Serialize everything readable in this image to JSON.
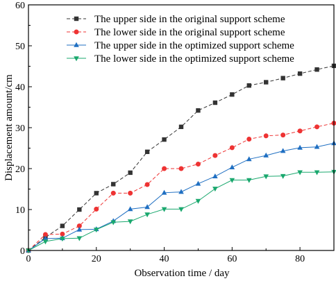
{
  "chart_data": {
    "type": "line",
    "title": "",
    "xlabel": "Observation time / day",
    "ylabel": "Displacement amount/cm",
    "xlim": [
      0,
      90
    ],
    "ylim": [
      0,
      60
    ],
    "x_ticks": [
      0,
      20,
      40,
      60,
      80
    ],
    "y_ticks": [
      0,
      10,
      20,
      30,
      40,
      50,
      60
    ],
    "grid": false,
    "legend_position": "top-left",
    "x": [
      0,
      5,
      10,
      15,
      20,
      25,
      30,
      35,
      40,
      45,
      50,
      55,
      60,
      65,
      70,
      75,
      80,
      85,
      90
    ],
    "series": [
      {
        "name": "The upper side in the original support scheme",
        "color": "#333333",
        "marker": "square",
        "dash": true,
        "values": [
          0,
          3.2,
          6,
          10,
          14,
          16.2,
          19,
          24.1,
          27.1,
          30.2,
          34.2,
          36.1,
          38.1,
          40.3,
          41.1,
          42.1,
          43.2,
          44.2,
          45.1
        ]
      },
      {
        "name": "The lower side in the original support scheme",
        "color": "#ee3333",
        "marker": "circle",
        "dash": true,
        "values": [
          0,
          3.9,
          4,
          6,
          10.1,
          14,
          14,
          16.1,
          20,
          20,
          21.1,
          23.2,
          25.1,
          27.2,
          28,
          28.2,
          29.2,
          30.2,
          31.1
        ]
      },
      {
        "name": "The upper side in the optimized support scheme",
        "color": "#1f6fc2",
        "marker": "triangle-up",
        "dash": false,
        "values": [
          0,
          2.9,
          3,
          5.1,
          5.2,
          7.2,
          10.1,
          10.6,
          14.1,
          14.3,
          16.3,
          18.1,
          20.3,
          22.3,
          23.2,
          24.3,
          25.1,
          25.3,
          26.2
        ]
      },
      {
        "name": "The lower side in the optimized support scheme",
        "color": "#1aa86e",
        "marker": "triangle-down",
        "dash": false,
        "values": [
          0,
          2.2,
          2.9,
          3,
          5.1,
          6.9,
          7.1,
          8.8,
          10.1,
          10.1,
          12.1,
          15.1,
          17.2,
          17.2,
          18.1,
          18.2,
          19.1,
          19.1,
          19.2
        ]
      }
    ]
  }
}
